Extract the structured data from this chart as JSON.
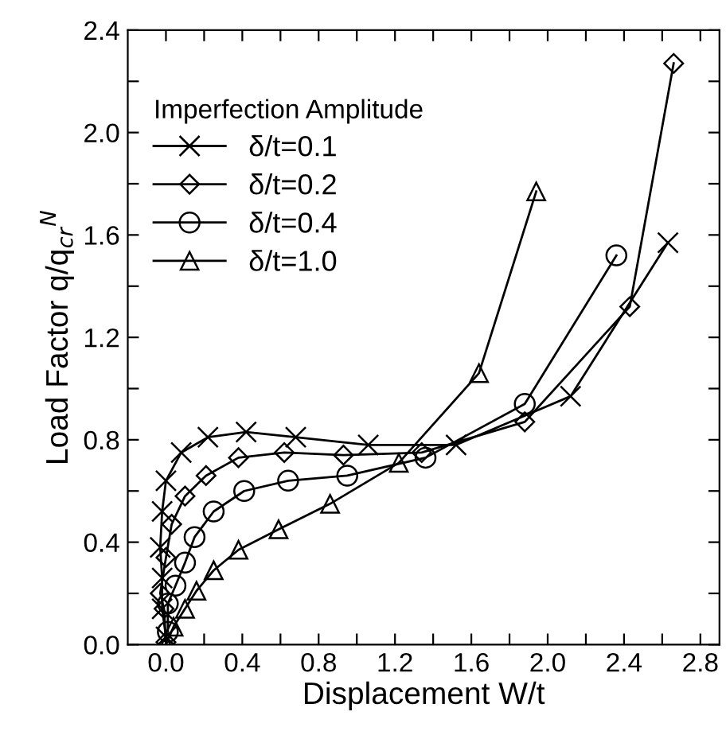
{
  "chart_data": {
    "type": "line",
    "xlabel": "Displacement W/t",
    "ylabel": "Load Factor q/q$_{cr}$$^{N}$",
    "legend_title": "Imperfection Amplitude",
    "legend": "top left",
    "grid": false,
    "xlim": [
      -0.2,
      2.9
    ],
    "ylim": [
      0.0,
      2.4
    ],
    "xticks": [
      {
        "value": 0.0,
        "label": "0.0"
      },
      {
        "value": 0.2,
        "label": null
      },
      0.4,
      {
        "value": 0.6,
        "label": null
      },
      0.8,
      {
        "value": 1.0,
        "label": null
      },
      1.2,
      {
        "value": 1.4,
        "label": null
      },
      1.6,
      {
        "value": 1.8,
        "label": null
      },
      {
        "value": 2.0,
        "label": "2.0"
      },
      {
        "value": 2.2,
        "label": null
      },
      2.4,
      {
        "value": 2.6,
        "label": null
      },
      2.8
    ],
    "yticks": [
      {
        "value": 0.0,
        "label": "0.0"
      },
      {
        "value": 0.2,
        "label": null
      },
      0.4,
      {
        "value": 0.6,
        "label": null
      },
      0.8,
      {
        "value": 1.0,
        "label": null
      },
      1.2,
      {
        "value": 1.4,
        "label": null
      },
      1.6,
      {
        "value": 1.8,
        "label": null
      },
      {
        "value": 2.0,
        "label": "2.0"
      },
      {
        "value": 2.2,
        "label": null
      },
      2.4
    ],
    "series": [
      {
        "name": "δ/t=0.1",
        "color": "#000000",
        "marker": "cross",
        "x": [
          0.0,
          -0.02,
          -0.02,
          -0.03,
          -0.02,
          0.0,
          0.08,
          0.22,
          0.42,
          0.68,
          1.06,
          1.52,
          2.12,
          2.63
        ],
        "values": [
          0.03,
          0.14,
          0.26,
          0.38,
          0.52,
          0.64,
          0.75,
          0.81,
          0.83,
          0.81,
          0.78,
          0.78,
          0.97,
          1.57
        ]
      },
      {
        "name": "δ/t=0.2",
        "color": "#000000",
        "marker": "diamond",
        "x": [
          0.0,
          -0.01,
          -0.03,
          0.0,
          0.03,
          0.1,
          0.21,
          0.38,
          0.62,
          0.93,
          1.34,
          1.88,
          2.43,
          2.66
        ],
        "values": [
          0.01,
          0.14,
          0.2,
          0.34,
          0.47,
          0.58,
          0.66,
          0.73,
          0.75,
          0.74,
          0.75,
          0.87,
          1.32,
          2.27
        ]
      },
      {
        "name": "δ/t=0.4",
        "color": "#000000",
        "marker": "circle",
        "x": [
          0.01,
          0.01,
          0.05,
          0.1,
          0.15,
          0.25,
          0.41,
          0.64,
          0.95,
          1.36,
          1.88,
          2.36
        ],
        "values": [
          0.05,
          0.16,
          0.23,
          0.32,
          0.42,
          0.52,
          0.6,
          0.64,
          0.66,
          0.73,
          0.94,
          1.52
        ]
      },
      {
        "name": "δ/t=1.0",
        "color": "#000000",
        "marker": "triangle",
        "x": [
          0.0,
          0.04,
          0.1,
          0.16,
          0.25,
          0.38,
          0.59,
          0.86,
          1.22,
          1.64,
          1.94
        ],
        "values": [
          0.0,
          0.07,
          0.14,
          0.21,
          0.29,
          0.37,
          0.45,
          0.55,
          0.71,
          1.06,
          1.77
        ]
      }
    ]
  }
}
